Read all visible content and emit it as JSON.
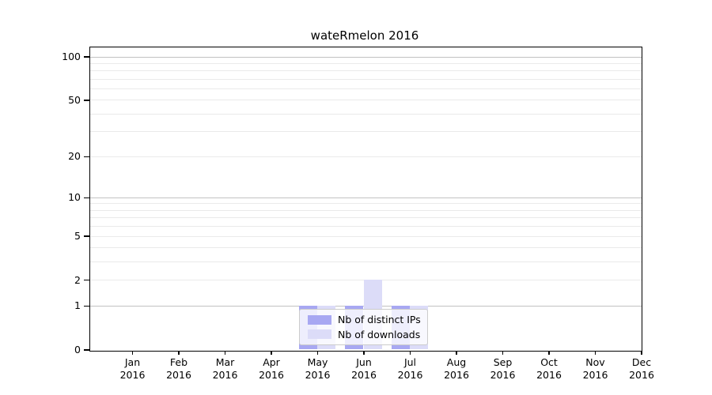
{
  "chart_data": {
    "type": "bar",
    "title": "wateRmelon 2016",
    "categories": [
      "Jan 2016",
      "Feb 2016",
      "Mar 2016",
      "Apr 2016",
      "May 2016",
      "Jun 2016",
      "Jul 2016",
      "Aug 2016",
      "Sep 2016",
      "Oct 2016",
      "Nov 2016",
      "Dec 2016"
    ],
    "series": [
      {
        "name": "Nb of distinct IPs",
        "color": "#a8a8f2",
        "values": [
          0,
          0,
          0,
          0,
          1,
          1,
          1,
          0,
          0,
          0,
          0,
          0
        ]
      },
      {
        "name": "Nb of downloads",
        "color": "#dcdcf8",
        "values": [
          0,
          0,
          0,
          0,
          1,
          2,
          1,
          0,
          0,
          0,
          0,
          0
        ]
      }
    ],
    "xlabel": "",
    "ylabel": "",
    "yscale": "log1p",
    "ylim": [
      0,
      120
    ],
    "ytick_values": [
      0,
      1,
      2,
      5,
      10,
      20,
      50,
      100
    ],
    "major_grid_values": [
      1,
      10,
      100
    ],
    "minor_grid_values": [
      2,
      3,
      4,
      5,
      6,
      7,
      8,
      9,
      20,
      30,
      40,
      50,
      60,
      70,
      80,
      90
    ],
    "grid": "horizontal",
    "legend_position": "inside-bottom-center",
    "colors": {
      "major_grid": "#c2c2c2",
      "minor_grid": "#eaeaea",
      "axis": "#000000",
      "background": "#ffffff",
      "text": "#000000"
    }
  }
}
